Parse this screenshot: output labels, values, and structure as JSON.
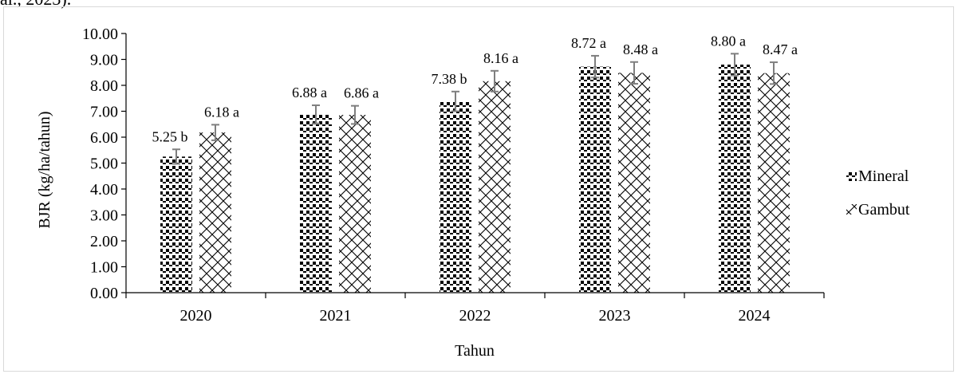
{
  "page": {
    "caption_fragment": "al., 2023)."
  },
  "chart_data": {
    "type": "bar",
    "title": "",
    "xlabel": "Tahun",
    "ylabel": "BJR (kg/ha/tahun)",
    "ylim": [
      0,
      10
    ],
    "ytick_step": 1,
    "ytick_labels": [
      "0.00",
      "1.00",
      "2.00",
      "3.00",
      "4.00",
      "5.00",
      "6.00",
      "7.00",
      "8.00",
      "9.00",
      "10.00"
    ],
    "categories": [
      "2020",
      "2021",
      "2022",
      "2023",
      "2024"
    ],
    "series": [
      {
        "name": "Mineral",
        "pattern": "dots",
        "values": [
          5.25,
          6.88,
          7.38,
          8.72,
          8.8
        ],
        "errors": [
          0.28,
          0.35,
          0.38,
          0.42,
          0.42
        ],
        "labels": [
          "5.25 b",
          "6.88 a",
          "7.38 b",
          "8.72 a",
          "8.80 a"
        ]
      },
      {
        "name": "Gambut",
        "pattern": "crosshatch",
        "values": [
          6.18,
          6.86,
          8.16,
          8.48,
          8.47
        ],
        "errors": [
          0.3,
          0.35,
          0.4,
          0.42,
          0.42
        ],
        "labels": [
          "6.18 a",
          "6.86 a",
          "8.16 a",
          "8.48 a",
          "8.47 a"
        ]
      }
    ],
    "legend_position": "right",
    "grid": false,
    "colors": {
      "bar_fill": "#ffffff",
      "pattern_ink": "#000000",
      "error_bar": "#7f7f7f",
      "axis": "#000000"
    }
  }
}
